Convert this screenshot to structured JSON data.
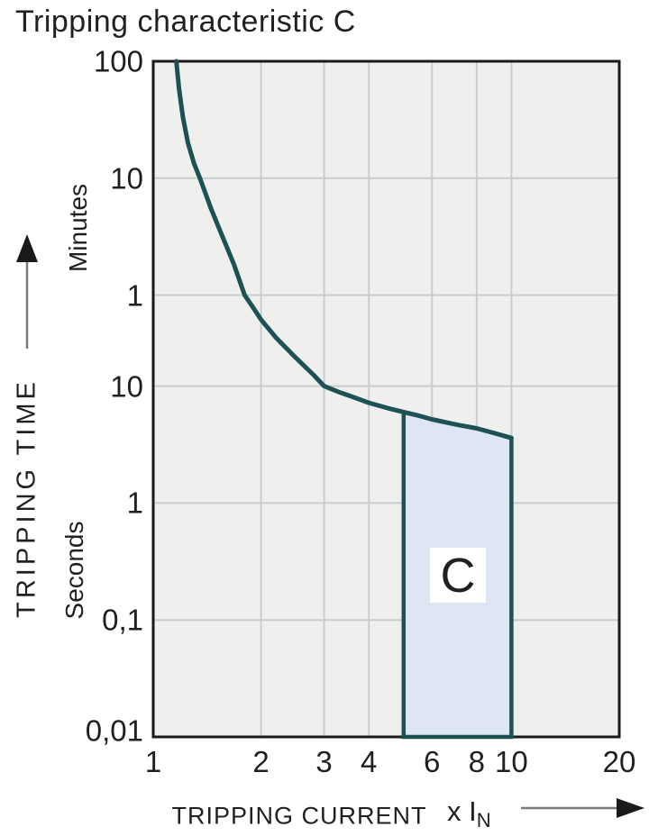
{
  "chart_data": {
    "type": "line",
    "title": "Tripping characteristic C",
    "x_axis": {
      "label": "TRIPPING CURRENT",
      "unit_prefix": "x I",
      "unit_subscript": "N",
      "scale": "log",
      "range": [
        1,
        20
      ],
      "tick_values": [
        1,
        2,
        3,
        4,
        6,
        8,
        10,
        20
      ],
      "gridline_values": [
        2,
        3,
        4,
        6,
        8,
        10
      ]
    },
    "y_axis": {
      "label": "TRIPPING TIME",
      "scale": "log",
      "range_seconds": [
        0.01,
        6000
      ],
      "unit_sections": {
        "top": "Minutes",
        "bottom": "Seconds"
      },
      "ticks": [
        {
          "label": "100",
          "seconds": 6000,
          "unit": "minutes"
        },
        {
          "label": "10",
          "seconds": 600,
          "unit": "minutes"
        },
        {
          "label": "1",
          "seconds": 60,
          "unit": "minutes"
        },
        {
          "label": "10",
          "seconds": 10,
          "unit": "seconds"
        },
        {
          "label": "1",
          "seconds": 1,
          "unit": "seconds"
        },
        {
          "label": "0,1",
          "seconds": 0.1,
          "unit": "seconds"
        },
        {
          "label": "0,01",
          "seconds": 0.01,
          "unit": "seconds"
        }
      ]
    },
    "series": [
      {
        "name": "tripping-curve",
        "points_x_in_t_seconds": [
          [
            1.16,
            6000
          ],
          [
            1.18,
            3500
          ],
          [
            1.21,
            2000
          ],
          [
            1.25,
            1200
          ],
          [
            1.3,
            800
          ],
          [
            1.35,
            600
          ],
          [
            1.45,
            330
          ],
          [
            1.55,
            200
          ],
          [
            1.68,
            110
          ],
          [
            1.8,
            60
          ],
          [
            1.9,
            47
          ],
          [
            2.0,
            37
          ],
          [
            2.2,
            26
          ],
          [
            2.5,
            17.5
          ],
          [
            2.8,
            12.5
          ],
          [
            3.0,
            10
          ],
          [
            3.3,
            8.9
          ],
          [
            3.6,
            8.1
          ],
          [
            4.0,
            7.2
          ],
          [
            4.5,
            6.5
          ],
          [
            5.0,
            6.0
          ],
          [
            5.5,
            5.6
          ],
          [
            6.0,
            5.2
          ],
          [
            7.0,
            4.7
          ],
          [
            8.0,
            4.35
          ],
          [
            9.0,
            3.95
          ],
          [
            10.0,
            3.6
          ]
        ]
      }
    ],
    "region": {
      "label": "C",
      "x_range": [
        5,
        10
      ],
      "bottom_seconds": 0.01,
      "top_follows": "tripping-curve"
    },
    "grid": "on",
    "legend": "none"
  },
  "colors": {
    "curve": "#1d5153",
    "region_fill": "#dee5f3",
    "plot_background": "#efefee",
    "gridline": "#c9ccd0",
    "plot_border": "#1a1a1a",
    "arrow": "#1a1a1a",
    "arrow_shaft": "#7a7a7a",
    "text": "#231f20"
  }
}
